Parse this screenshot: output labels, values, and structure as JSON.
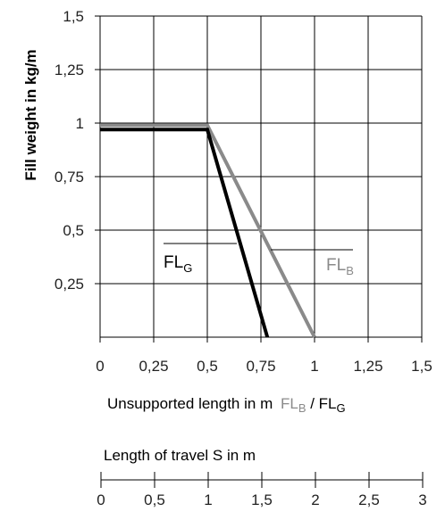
{
  "chart_data": {
    "type": "line",
    "ylabel": "Fill weight in kg/m",
    "xlabel_main": "Unsupported length in m",
    "xlabel_suffix": {
      "fl_b_main": "FL",
      "fl_b_sub": "B",
      "separator": " / ",
      "fl_g_main": "FL",
      "fl_g_sub": "G"
    },
    "xlim": [
      0,
      1.5
    ],
    "ylim": [
      0,
      1.5
    ],
    "x_ticks": [
      0,
      0.25,
      0.5,
      0.75,
      1,
      1.25,
      1.5
    ],
    "x_tick_labels": [
      "0",
      "0,25",
      "0,5",
      "0,75",
      "1",
      "1,25",
      "1,5"
    ],
    "y_ticks": [
      0.25,
      0.5,
      0.75,
      1,
      1.25,
      1.5
    ],
    "y_tick_labels": [
      "0,25",
      "0,5",
      "0,75",
      "1",
      "1,25",
      "1,5"
    ],
    "grid": true,
    "series": [
      {
        "name_main": "FL",
        "name_sub": "B",
        "color": "#8a8a8a",
        "points": [
          [
            0,
            0.99
          ],
          [
            0.5,
            0.99
          ],
          [
            1.0,
            0.0
          ]
        ]
      },
      {
        "name_main": "FL",
        "name_sub": "G",
        "color": "#000000",
        "points": [
          [
            0,
            0.97
          ],
          [
            0.5,
            0.97
          ],
          [
            0.78,
            0.0
          ]
        ]
      }
    ],
    "secondary_axis": {
      "title": "Length of travel S in m",
      "range": [
        0,
        3
      ],
      "ticks": [
        0,
        0.5,
        1,
        1.5,
        2,
        2.5,
        3
      ],
      "tick_labels": [
        "0",
        "0,5",
        "1",
        "1,5",
        "2",
        "2,5",
        "3"
      ]
    }
  }
}
